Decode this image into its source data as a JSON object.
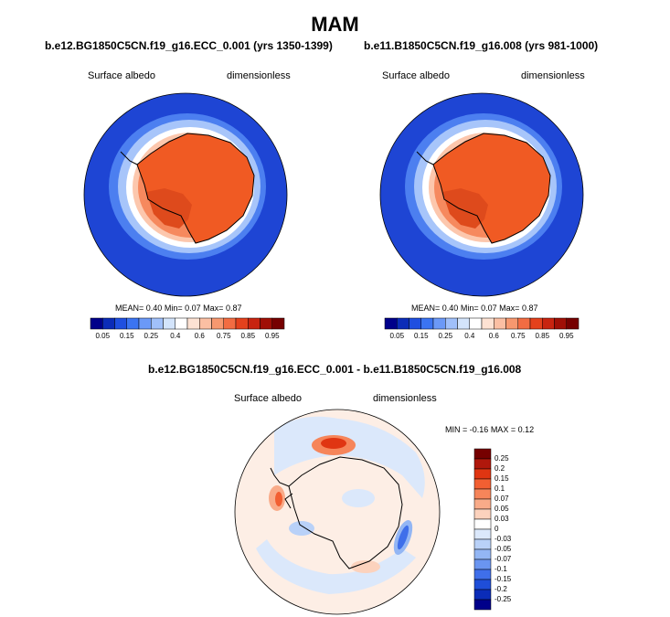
{
  "title": "MAM",
  "panels": [
    {
      "case": "b.e12.BG1850C5CN.f19_g16.ECC_0.001 (yrs 1350-1399)",
      "variable": "Surface albedo",
      "units": "dimensionless",
      "mean_label": "MEAN=",
      "mean": "0.40",
      "min_label": "Min=",
      "min": "0.07",
      "max_label": "Max=",
      "max": "0.87"
    },
    {
      "case": "b.e11.B1850C5CN.f19_g16.008 (yrs 981-1000)",
      "variable": "Surface albedo",
      "units": "dimensionless",
      "mean_label": "MEAN=",
      "mean": "0.40",
      "min_label": "Min=",
      "min": "0.07",
      "max_label": "Max=",
      "max": "0.87"
    }
  ],
  "diff": {
    "case": "b.e12.BG1850C5CN.f19_g16.ECC_0.001 - b.e11.B1850C5CN.f19_g16.008",
    "variable": "Surface albedo",
    "units": "dimensionless",
    "min_label": "MIN =",
    "min": "-0.16",
    "max_label": "MAX =",
    "max": "0.12"
  },
  "colorbar_abs": {
    "colors": [
      "#00008a",
      "#0b2cb8",
      "#1f4fe0",
      "#3b74f2",
      "#6b99f7",
      "#a0c0fa",
      "#d3e4fb",
      "#ffffff",
      "#fde2d3",
      "#fbbfa3",
      "#f7986f",
      "#f26c42",
      "#e4411c",
      "#c82410",
      "#a00f06",
      "#760000"
    ],
    "ticks": [
      "0.05",
      "0.15",
      "0.25",
      "0.4",
      "0.6",
      "0.75",
      "0.85",
      "0.95"
    ]
  },
  "colorbar_diff": {
    "colors": [
      "#760000",
      "#b0180c",
      "#e03512",
      "#f25f32",
      "#f6855a",
      "#f9ab89",
      "#fcd2bd",
      "#ffffff",
      "#dbe8fb",
      "#b9d1f8",
      "#93b6f4",
      "#6a95f0",
      "#3f6fea",
      "#1f4ed8",
      "#0b2cb8",
      "#00008a"
    ],
    "ticks": [
      "0.25",
      "0.2",
      "0.15",
      "0.1",
      "0.07",
      "0.05",
      "0.03",
      "0",
      "-0.03",
      "-0.05",
      "-0.07",
      "-0.1",
      "-0.15",
      "-0.2",
      "-0.25"
    ]
  }
}
